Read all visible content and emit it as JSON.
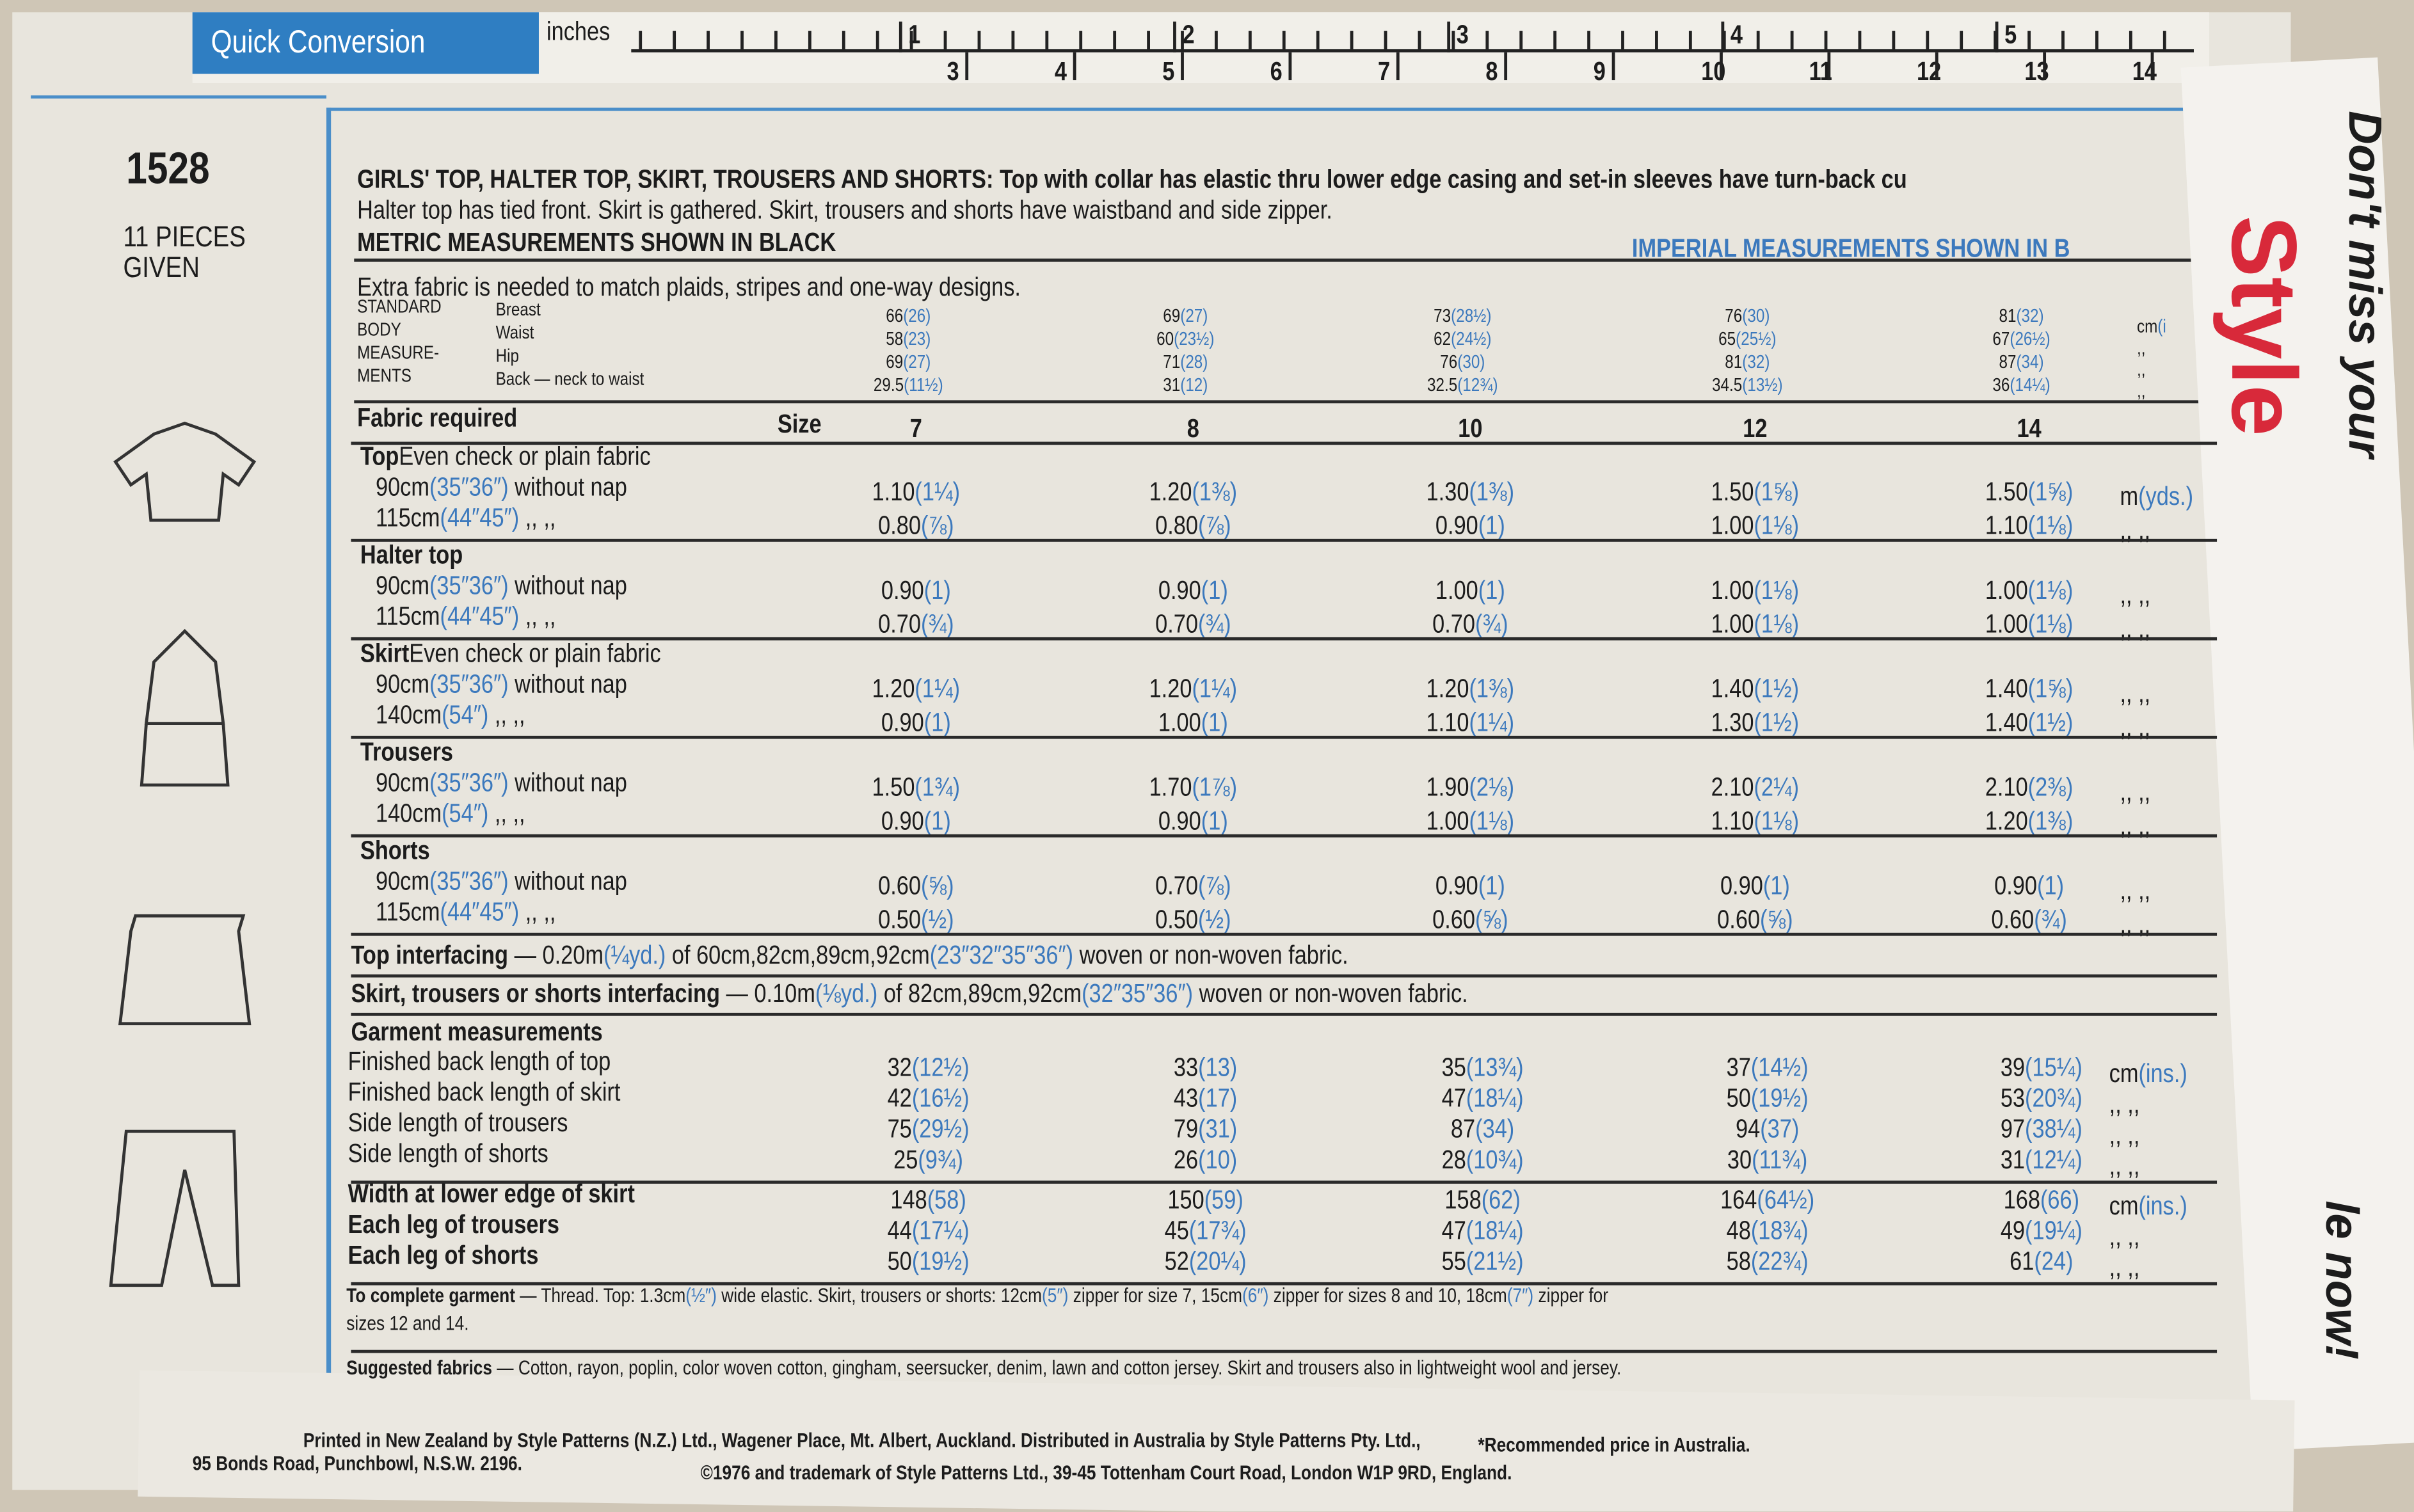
{
  "header": {
    "banner": "Quick Conversion",
    "ruler_label": "inches",
    "inches": [
      "1",
      "2",
      "3",
      "4",
      "5"
    ],
    "cm": [
      "3",
      "4",
      "5",
      "6",
      "7",
      "8",
      "9",
      "10",
      "11",
      "12",
      "13",
      "14"
    ],
    "pattern_number": "1528",
    "pieces": [
      "11 PIECES",
      "GIVEN"
    ]
  },
  "intro": {
    "title": [
      {
        "bold": "GIRLS' TOP, HALTER TOP, SKIRT, TROUSERS AND SHORTS:"
      },
      {
        "metric": " Top with collar has elastic thru lower edge casing and set-in sleeves have turn-back cu"
      }
    ],
    "description_2": "Halter top has tied front. Skirt is gathered. Skirt, trousers and shorts have waistband and side zipper.",
    "metric_note": "METRIC MEASUREMENTS SHOWN IN BLACK",
    "imperial_note": "IMPERIAL MEASUREMENTS SHOWN IN B",
    "extra_fabric": "Extra fabric is needed to match plaids, stripes and one-way designs."
  },
  "body": {
    "label": [
      "STANDARD",
      "BODY",
      "MEASURE-",
      "MENTS"
    ],
    "items": [
      "Breast",
      "Waist",
      "Hip",
      "Back — neck to waist"
    ],
    "columns": [
      [
        {
          "metric": "66",
          "imperial": "(26)"
        },
        {
          "metric": "58",
          "imperial": "(23)"
        },
        {
          "metric": "69",
          "imperial": "(27)"
        },
        {
          "metric": "29.5",
          "imperial": "(11½)"
        }
      ],
      [
        {
          "metric": "69",
          "imperial": "(27)"
        },
        {
          "metric": "60",
          "imperial": "(23½)"
        },
        {
          "metric": "71",
          "imperial": "(28)"
        },
        {
          "metric": "31",
          "imperial": "(12)"
        }
      ],
      [
        {
          "metric": "73",
          "imperial": "(28½)"
        },
        {
          "metric": "62",
          "imperial": "(24½)"
        },
        {
          "metric": "76",
          "imperial": "(30)"
        },
        {
          "metric": "32.5",
          "imperial": "(12¾)"
        }
      ],
      [
        {
          "metric": "76",
          "imperial": "(30)"
        },
        {
          "metric": "65",
          "imperial": "(25½)"
        },
        {
          "metric": "81",
          "imperial": "(32)"
        },
        {
          "metric": "34.5",
          "imperial": "(13½)"
        }
      ],
      [
        {
          "metric": "81",
          "imperial": "(32)"
        },
        {
          "metric": "67",
          "imperial": "(26½)"
        },
        {
          "metric": "87",
          "imperial": "(34)"
        },
        {
          "metric": "36",
          "imperial": "(14¼)"
        }
      ]
    ],
    "units": [
      [
        {
          "metric": "cm"
        },
        {
          "imperial": "(i"
        }
      ],
      [
        {
          "metric": ",,"
        }
      ],
      [
        {
          "metric": ",,"
        }
      ],
      [
        {
          "metric": ",,"
        }
      ]
    ]
  },
  "fabric": {
    "heading": "Fabric required",
    "size_label": "Size",
    "sizes": [
      "7",
      "8",
      "10",
      "12",
      "14"
    ],
    "sections": [
      {
        "name": "Top",
        "note": "Even check or plain fabric",
        "rows": [
          {
            "label": [
              {
                "metric": "90cm"
              },
              {
                "imperial": "(35″36″)"
              },
              {
                "metric": " without nap"
              }
            ],
            "values": [
              {
                "metric": "1.10",
                "imperial": "(1¼)"
              },
              {
                "metric": "1.20",
                "imperial": "(1⅜)"
              },
              {
                "metric": "1.30",
                "imperial": "(1⅜)"
              },
              {
                "metric": "1.50",
                "imperial": "(1⅝)"
              },
              {
                "metric": "1.50",
                "imperial": "(1⅝)"
              }
            ],
            "unit": [
              {
                "metric": "m"
              },
              {
                "imperial": "(yds.)"
              }
            ]
          },
          {
            "label": [
              {
                "metric": "115cm"
              },
              {
                "imperial": "(44″45″)"
              },
              {
                "metric": "    ,,      ,,"
              }
            ],
            "values": [
              {
                "metric": "0.80",
                "imperial": "(⅞)"
              },
              {
                "metric": "0.80",
                "imperial": "(⅞)"
              },
              {
                "metric": "0.90",
                "imperial": "(1)"
              },
              {
                "metric": "1.00",
                "imperial": "(1⅛)"
              },
              {
                "metric": "1.10",
                "imperial": "(1⅛)"
              }
            ],
            "unit": [
              {
                "metric": " ,,    ,,"
              }
            ]
          }
        ]
      },
      {
        "name": "Halter top",
        "note": "",
        "rows": [
          {
            "label": [
              {
                "metric": "90cm"
              },
              {
                "imperial": "(35″36″)"
              },
              {
                "metric": " without nap"
              }
            ],
            "values": [
              {
                "metric": "0.90",
                "imperial": "(1)"
              },
              {
                "metric": "0.90",
                "imperial": "(1)"
              },
              {
                "metric": "1.00",
                "imperial": "(1)"
              },
              {
                "metric": "1.00",
                "imperial": "(1⅛)"
              },
              {
                "metric": "1.00",
                "imperial": "(1⅛)"
              }
            ],
            "unit": [
              {
                "metric": " ,,    ,,"
              }
            ]
          },
          {
            "label": [
              {
                "metric": "115cm"
              },
              {
                "imperial": "(44″45″)"
              },
              {
                "metric": "    ,,      ,,"
              }
            ],
            "values": [
              {
                "metric": "0.70",
                "imperial": "(¾)"
              },
              {
                "metric": "0.70",
                "imperial": "(¾)"
              },
              {
                "metric": "0.70",
                "imperial": "(¾)"
              },
              {
                "metric": "1.00",
                "imperial": "(1⅛)"
              },
              {
                "metric": "1.00",
                "imperial": "(1⅛)"
              }
            ],
            "unit": [
              {
                "metric": " ,,    ,,"
              }
            ]
          }
        ]
      },
      {
        "name": "Skirt",
        "note": "Even check or plain fabric",
        "rows": [
          {
            "label": [
              {
                "metric": "90cm"
              },
              {
                "imperial": "(35″36″)"
              },
              {
                "metric": " without nap"
              }
            ],
            "values": [
              {
                "metric": "1.20",
                "imperial": "(1¼)"
              },
              {
                "metric": "1.20",
                "imperial": "(1¼)"
              },
              {
                "metric": "1.20",
                "imperial": "(1⅜)"
              },
              {
                "metric": "1.40",
                "imperial": "(1½)"
              },
              {
                "metric": "1.40",
                "imperial": "(1⅝)"
              }
            ],
            "unit": [
              {
                "metric": " ,,    ,,"
              }
            ]
          },
          {
            "label": [
              {
                "metric": "140cm"
              },
              {
                "imperial": "(54″)"
              },
              {
                "metric": "         ,,      ,,"
              }
            ],
            "values": [
              {
                "metric": "0.90",
                "imperial": "(1)"
              },
              {
                "metric": "1.00",
                "imperial": "(1)"
              },
              {
                "metric": "1.10",
                "imperial": "(1¼)"
              },
              {
                "metric": "1.30",
                "imperial": "(1½)"
              },
              {
                "metric": "1.40",
                "imperial": "(1½)"
              }
            ],
            "unit": [
              {
                "metric": " ,,    ,,"
              }
            ]
          }
        ]
      },
      {
        "name": "Trousers",
        "note": "",
        "rows": [
          {
            "label": [
              {
                "metric": "90cm"
              },
              {
                "imperial": "(35″36″)"
              },
              {
                "metric": " without nap"
              }
            ],
            "values": [
              {
                "metric": "1.50",
                "imperial": "(1¾)"
              },
              {
                "metric": "1.70",
                "imperial": "(1⅞)"
              },
              {
                "metric": "1.90",
                "imperial": "(2⅛)"
              },
              {
                "metric": "2.10",
                "imperial": "(2¼)"
              },
              {
                "metric": "2.10",
                "imperial": "(2⅜)"
              }
            ],
            "unit": [
              {
                "metric": " ,,    ,,"
              }
            ]
          },
          {
            "label": [
              {
                "metric": "140cm"
              },
              {
                "imperial": "(54″)"
              },
              {
                "metric": "         ,,      ,,"
              }
            ],
            "values": [
              {
                "metric": "0.90",
                "imperial": "(1)"
              },
              {
                "metric": "0.90",
                "imperial": "(1)"
              },
              {
                "metric": "1.00",
                "imperial": "(1⅛)"
              },
              {
                "metric": "1.10",
                "imperial": "(1⅛)"
              },
              {
                "metric": "1.20",
                "imperial": "(1⅜)"
              }
            ],
            "unit": [
              {
                "metric": " ,,    ,,"
              }
            ]
          }
        ]
      },
      {
        "name": "Shorts",
        "note": "",
        "rows": [
          {
            "label": [
              {
                "metric": "90cm"
              },
              {
                "imperial": "(35″36″)"
              },
              {
                "metric": " without nap"
              }
            ],
            "values": [
              {
                "metric": "0.60",
                "imperial": "(⅝)"
              },
              {
                "metric": "0.70",
                "imperial": "(⅞)"
              },
              {
                "metric": "0.90",
                "imperial": "(1)"
              },
              {
                "metric": "0.90",
                "imperial": "(1)"
              },
              {
                "metric": "0.90",
                "imperial": "(1)"
              }
            ],
            "unit": [
              {
                "metric": " ,,    ,,"
              }
            ]
          },
          {
            "label": [
              {
                "metric": "115cm"
              },
              {
                "imperial": "(44″45″)"
              },
              {
                "metric": "    ,,      ,,"
              }
            ],
            "values": [
              {
                "metric": "0.50",
                "imperial": "(½)"
              },
              {
                "metric": "0.50",
                "imperial": "(½)"
              },
              {
                "metric": "0.60",
                "imperial": "(⅝)"
              },
              {
                "metric": "0.60",
                "imperial": "(⅝)"
              },
              {
                "metric": "0.60",
                "imperial": "(¾)"
              }
            ],
            "unit": [
              {
                "metric": " ,,    ,,"
              }
            ]
          }
        ]
      }
    ]
  },
  "interfacing": [
    [
      {
        "bold": "Top interfacing"
      },
      {
        "metric": " — 0.20m"
      },
      {
        "imperial": "(¼yd.)"
      },
      {
        "metric": " of 60cm,82cm,89cm,92cm"
      },
      {
        "imperial": "(23″32″35″36″)"
      },
      {
        "metric": " woven or non-woven fabric."
      }
    ],
    [
      {
        "bold": "Skirt, trousers or shorts interfacing"
      },
      {
        "metric": " — 0.10m"
      },
      {
        "imperial": "(⅛yd.)"
      },
      {
        "metric": " of 82cm,89cm,92cm"
      },
      {
        "imperial": "(32″35″36″)"
      },
      {
        "metric": " woven or non-woven fabric."
      }
    ]
  ],
  "garment": {
    "heading": "Garment measurements",
    "rows": [
      {
        "label": "Finished back length of top",
        "bold": false,
        "values": [
          {
            "metric": "32",
            "imperial": "(12½)"
          },
          {
            "metric": "33",
            "imperial": "(13)"
          },
          {
            "metric": "35",
            "imperial": "(13¾)"
          },
          {
            "metric": "37",
            "imperial": "(14½)"
          },
          {
            "metric": "39",
            "imperial": "(15¼)"
          }
        ],
        "unit": [
          {
            "metric": "cm"
          },
          {
            "imperial": "(ins.)"
          }
        ]
      },
      {
        "label": "Finished back length of skirt",
        "bold": false,
        "values": [
          {
            "metric": "42",
            "imperial": "(16½)"
          },
          {
            "metric": "43",
            "imperial": "(17)"
          },
          {
            "metric": "47",
            "imperial": "(18¼)"
          },
          {
            "metric": "50",
            "imperial": "(19½)"
          },
          {
            "metric": "53",
            "imperial": "(20¾)"
          }
        ],
        "unit": [
          {
            "metric": " ,,    ,,"
          }
        ]
      },
      {
        "label": "Side length of trousers",
        "bold": false,
        "values": [
          {
            "metric": "75",
            "imperial": "(29½)"
          },
          {
            "metric": "79",
            "imperial": "(31)"
          },
          {
            "metric": "87",
            "imperial": "(34)"
          },
          {
            "metric": "94",
            "imperial": "(37)"
          },
          {
            "metric": "97",
            "imperial": "(38¼)"
          }
        ],
        "unit": [
          {
            "metric": " ,,    ,,"
          }
        ]
      },
      {
        "label": "Side length of shorts",
        "bold": false,
        "values": [
          {
            "metric": "25",
            "imperial": "(9¾)"
          },
          {
            "metric": "26",
            "imperial": "(10)"
          },
          {
            "metric": "28",
            "imperial": "(10¾)"
          },
          {
            "metric": "30",
            "imperial": "(11¾)"
          },
          {
            "metric": "31",
            "imperial": "(12¼)"
          }
        ],
        "unit": [
          {
            "metric": " ,,    ,,"
          }
        ]
      },
      {
        "label": "Width at lower edge of skirt",
        "bold": true,
        "values": [
          {
            "metric": "148",
            "imperial": "(58)"
          },
          {
            "metric": "150",
            "imperial": "(59)"
          },
          {
            "metric": "158",
            "imperial": "(62)"
          },
          {
            "metric": "164",
            "imperial": "(64½)"
          },
          {
            "metric": "168",
            "imperial": "(66)"
          }
        ],
        "unit": [
          {
            "metric": "cm"
          },
          {
            "imperial": "(ins.)"
          }
        ]
      },
      {
        "label": "Each leg of trousers",
        "bold": true,
        "values": [
          {
            "metric": "44",
            "imperial": "(17¼)"
          },
          {
            "metric": "45",
            "imperial": "(17¾)"
          },
          {
            "metric": "47",
            "imperial": "(18¼)"
          },
          {
            "metric": "48",
            "imperial": "(18¾)"
          },
          {
            "metric": "49",
            "imperial": "(19¼)"
          }
        ],
        "unit": [
          {
            "metric": " ,,    ,,"
          }
        ]
      },
      {
        "label": "Each leg of shorts",
        "bold": true,
        "values": [
          {
            "metric": "50",
            "imperial": "(19½)"
          },
          {
            "metric": "52",
            "imperial": "(20¼)"
          },
          {
            "metric": "55",
            "imperial": "(21½)"
          },
          {
            "metric": "58",
            "imperial": "(22¾)"
          },
          {
            "metric": "61",
            "imperial": "(24)"
          }
        ],
        "unit": [
          {
            "metric": " ,,    ,,"
          }
        ]
      }
    ]
  },
  "to_complete": [
    {
      "bold": "To complete garment"
    },
    {
      "metric": " — Thread. Top: 1.3cm"
    },
    {
      "imperial": "(½″)"
    },
    {
      "metric": " wide elastic. Skirt, trousers or shorts: 12cm"
    },
    {
      "imperial": "(5″)"
    },
    {
      "metric": " zipper for size 7, 15cm"
    },
    {
      "imperial": "(6″)"
    },
    {
      "metric": " zipper for sizes 8 and 10, 18cm"
    },
    {
      "imperial": "(7″)"
    },
    {
      "metric": " zipper for"
    }
  ],
  "to_complete_2": "sizes 12 and 14.",
  "suggested": [
    {
      "bold": "Suggested fabrics"
    },
    {
      "metric": " — Cotton, rayon, poplin, color woven cotton, gingham, seersucker, denim, lawn and cotton jersey. Skirt and trousers also in lightweight wool and jersey."
    }
  ],
  "footer": [
    "Printed in New Zealand by Style Patterns (N.Z.) Ltd., Wagener Place, Mt. Albert, Auckland. Distributed in Australia by Style Patterns Pty. Ltd.,",
    "95 Bonds Road, Punchbowl, N.S.W. 2196.",
    "©1976 and trademark of Style Patterns Ltd., 39-45 Tottenham Court Road, London W1P 9RD, England.",
    "*Recommended price in Australia."
  ],
  "flap": {
    "top": "Don't miss your",
    "brand": "Style",
    "bottom": "le now!"
  }
}
